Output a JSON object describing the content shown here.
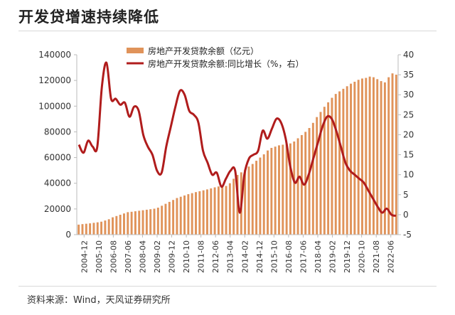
{
  "title": "开发贷增速持续降低",
  "source": "资料来源：Wind，天风证券研究所",
  "colors": {
    "bar": "#e0935a",
    "line": "#b01c1c"
  },
  "chart_data": {
    "type": "bar+line",
    "legend": [
      "房地产开发贷款余额（亿元）",
      "房地产开发贷款余额:同比增长（%，右）"
    ],
    "left_axis": {
      "ticks": [
        0,
        20000,
        40000,
        60000,
        80000,
        100000,
        120000,
        140000
      ],
      "range": [
        0,
        140000
      ]
    },
    "right_axis": {
      "ticks": [
        -5,
        0,
        5,
        10,
        15,
        20,
        25,
        30,
        35,
        40
      ],
      "range": [
        -5,
        40
      ]
    },
    "x_ticks": [
      "2004-12",
      "2005-10",
      "2006-08",
      "2007-06",
      "2008-04",
      "2009-02",
      "2009-12",
      "2010-10",
      "2011-08",
      "2012-06",
      "2013-04",
      "2014-02",
      "2014-12",
      "2015-10",
      "2016-08",
      "2017-06",
      "2018-04",
      "2019-02",
      "2019-12",
      "2020-10",
      "2021-08",
      "2022-06"
    ],
    "series": [
      {
        "name": "房地产开发贷款余额（亿元）",
        "type": "bar",
        "axis": "left",
        "values": [
          7800,
          8200,
          8500,
          8800,
          9200,
          9600,
          10100,
          11000,
          12000,
          13500,
          14500,
          15500,
          16500,
          17500,
          17800,
          18200,
          18600,
          19000,
          19400,
          19800,
          20200,
          21000,
          22500,
          24000,
          25500,
          27000,
          28500,
          29500,
          30500,
          31500,
          32300,
          33100,
          33800,
          34500,
          35200,
          36000,
          36800,
          37500,
          37700,
          37900,
          40000,
          43500,
          46500,
          48500,
          50500,
          53000,
          55000,
          57500,
          60000,
          62500,
          65500,
          67500,
          68500,
          69500,
          70000,
          70500,
          71000,
          72500,
          75000,
          77500,
          80000,
          83000,
          87000,
          91500,
          95500,
          99500,
          103000,
          106500,
          109500,
          111500,
          113500,
          115500,
          117500,
          119000,
          120500,
          121500,
          122000,
          123000,
          122500,
          121000,
          119500,
          118500,
          122500,
          125500,
          124500
        ]
      },
      {
        "name": "房地产开发贷款余额:同比增长（%，右）",
        "type": "line",
        "axis": "right",
        "points": [
          [
            0,
            17.5
          ],
          [
            1,
            15.5
          ],
          [
            2,
            18.5
          ],
          [
            3,
            17
          ],
          [
            4,
            17
          ],
          [
            5,
            32
          ],
          [
            6,
            38
          ],
          [
            7,
            29
          ],
          [
            8,
            29
          ],
          [
            9,
            27.5
          ],
          [
            10,
            28
          ],
          [
            11,
            24.5
          ],
          [
            12,
            27
          ],
          [
            13,
            26
          ],
          [
            14,
            20
          ],
          [
            15,
            17
          ],
          [
            16,
            15
          ],
          [
            17,
            11
          ],
          [
            18,
            10.5
          ],
          [
            19,
            17
          ],
          [
            20,
            22
          ],
          [
            21,
            27
          ],
          [
            22,
            31
          ],
          [
            23,
            30
          ],
          [
            24,
            26
          ],
          [
            25,
            25
          ],
          [
            26,
            23
          ],
          [
            27,
            16
          ],
          [
            28,
            13
          ],
          [
            29,
            10
          ],
          [
            30,
            10.5
          ],
          [
            31,
            7
          ],
          [
            32,
            9
          ],
          [
            33,
            11
          ],
          [
            34,
            11
          ],
          [
            35,
            0.5
          ],
          [
            36,
            10
          ],
          [
            37,
            14
          ],
          [
            38,
            15
          ],
          [
            39,
            16
          ],
          [
            40,
            21
          ],
          [
            41,
            19
          ],
          [
            42,
            21.5
          ],
          [
            43,
            24
          ],
          [
            44,
            23
          ],
          [
            45,
            19
          ],
          [
            46,
            12
          ],
          [
            47,
            8
          ],
          [
            48,
            9.5
          ],
          [
            49,
            7.5
          ],
          [
            50,
            10
          ],
          [
            51,
            14
          ],
          [
            52,
            18
          ],
          [
            53,
            22
          ],
          [
            54,
            24.5
          ],
          [
            55,
            24
          ],
          [
            56,
            21
          ],
          [
            57,
            17
          ],
          [
            58,
            13
          ],
          [
            59,
            11
          ],
          [
            60,
            10
          ],
          [
            61,
            9
          ],
          [
            62,
            8
          ],
          [
            63,
            6
          ],
          [
            64,
            4
          ],
          [
            65,
            2
          ],
          [
            66,
            0.5
          ],
          [
            67,
            1.5
          ],
          [
            68,
            0
          ],
          [
            69,
            -0.3
          ]
        ]
      }
    ]
  }
}
